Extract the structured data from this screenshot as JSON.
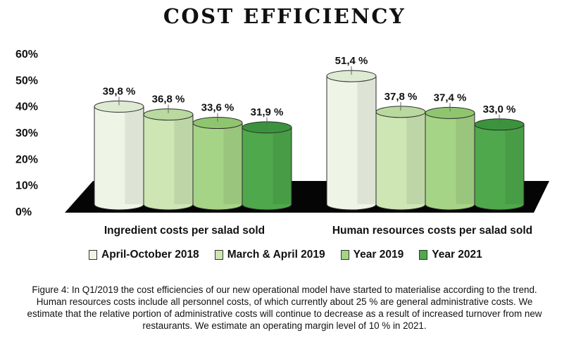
{
  "colors": {
    "series": [
      "#eef5e6",
      "#cde6b4",
      "#a6d486",
      "#4fa84c"
    ],
    "series_top": [
      "#dfead3",
      "#b9d99e",
      "#8fc56f",
      "#3c933d"
    ],
    "floor": "#050505"
  },
  "chart_data": {
    "type": "bar",
    "title": "COST EFFICIENCY",
    "categories": [
      "Ingredient costs per salad sold",
      "Human resources costs per salad sold"
    ],
    "series": [
      {
        "name": "April-October 2018",
        "values": [
          39.8,
          51.4
        ],
        "labels": [
          "39,8 %",
          "51,4 %"
        ]
      },
      {
        "name": "March & April 2019",
        "values": [
          36.8,
          37.8
        ],
        "labels": [
          "36,8 %",
          "37,8 %"
        ]
      },
      {
        "name": "Year 2019",
        "values": [
          33.6,
          37.4
        ],
        "labels": [
          "33,6 %",
          "37,4 %"
        ]
      },
      {
        "name": "Year 2021",
        "values": [
          31.9,
          33.0
        ],
        "labels": [
          "31,9 %",
          "33,0 %"
        ]
      }
    ],
    "y_ticks": [
      "0%",
      "10%",
      "20%",
      "30%",
      "40%",
      "50%",
      "60%"
    ],
    "ylim": [
      0,
      60
    ],
    "legend_position": "bottom",
    "grid": false
  },
  "caption": "Figure 4: In Q1/2019 the cost efficiencies of our new operational model have started to materialise according to the trend. Human resources costs include all personnel costs, of which currently about 25 % are general administrative costs. We estimate that the relative portion of administrative costs will continue to decrease as a result of increased turnover from new restaurants. We estimate an operating margin level of 10 % in 2021."
}
